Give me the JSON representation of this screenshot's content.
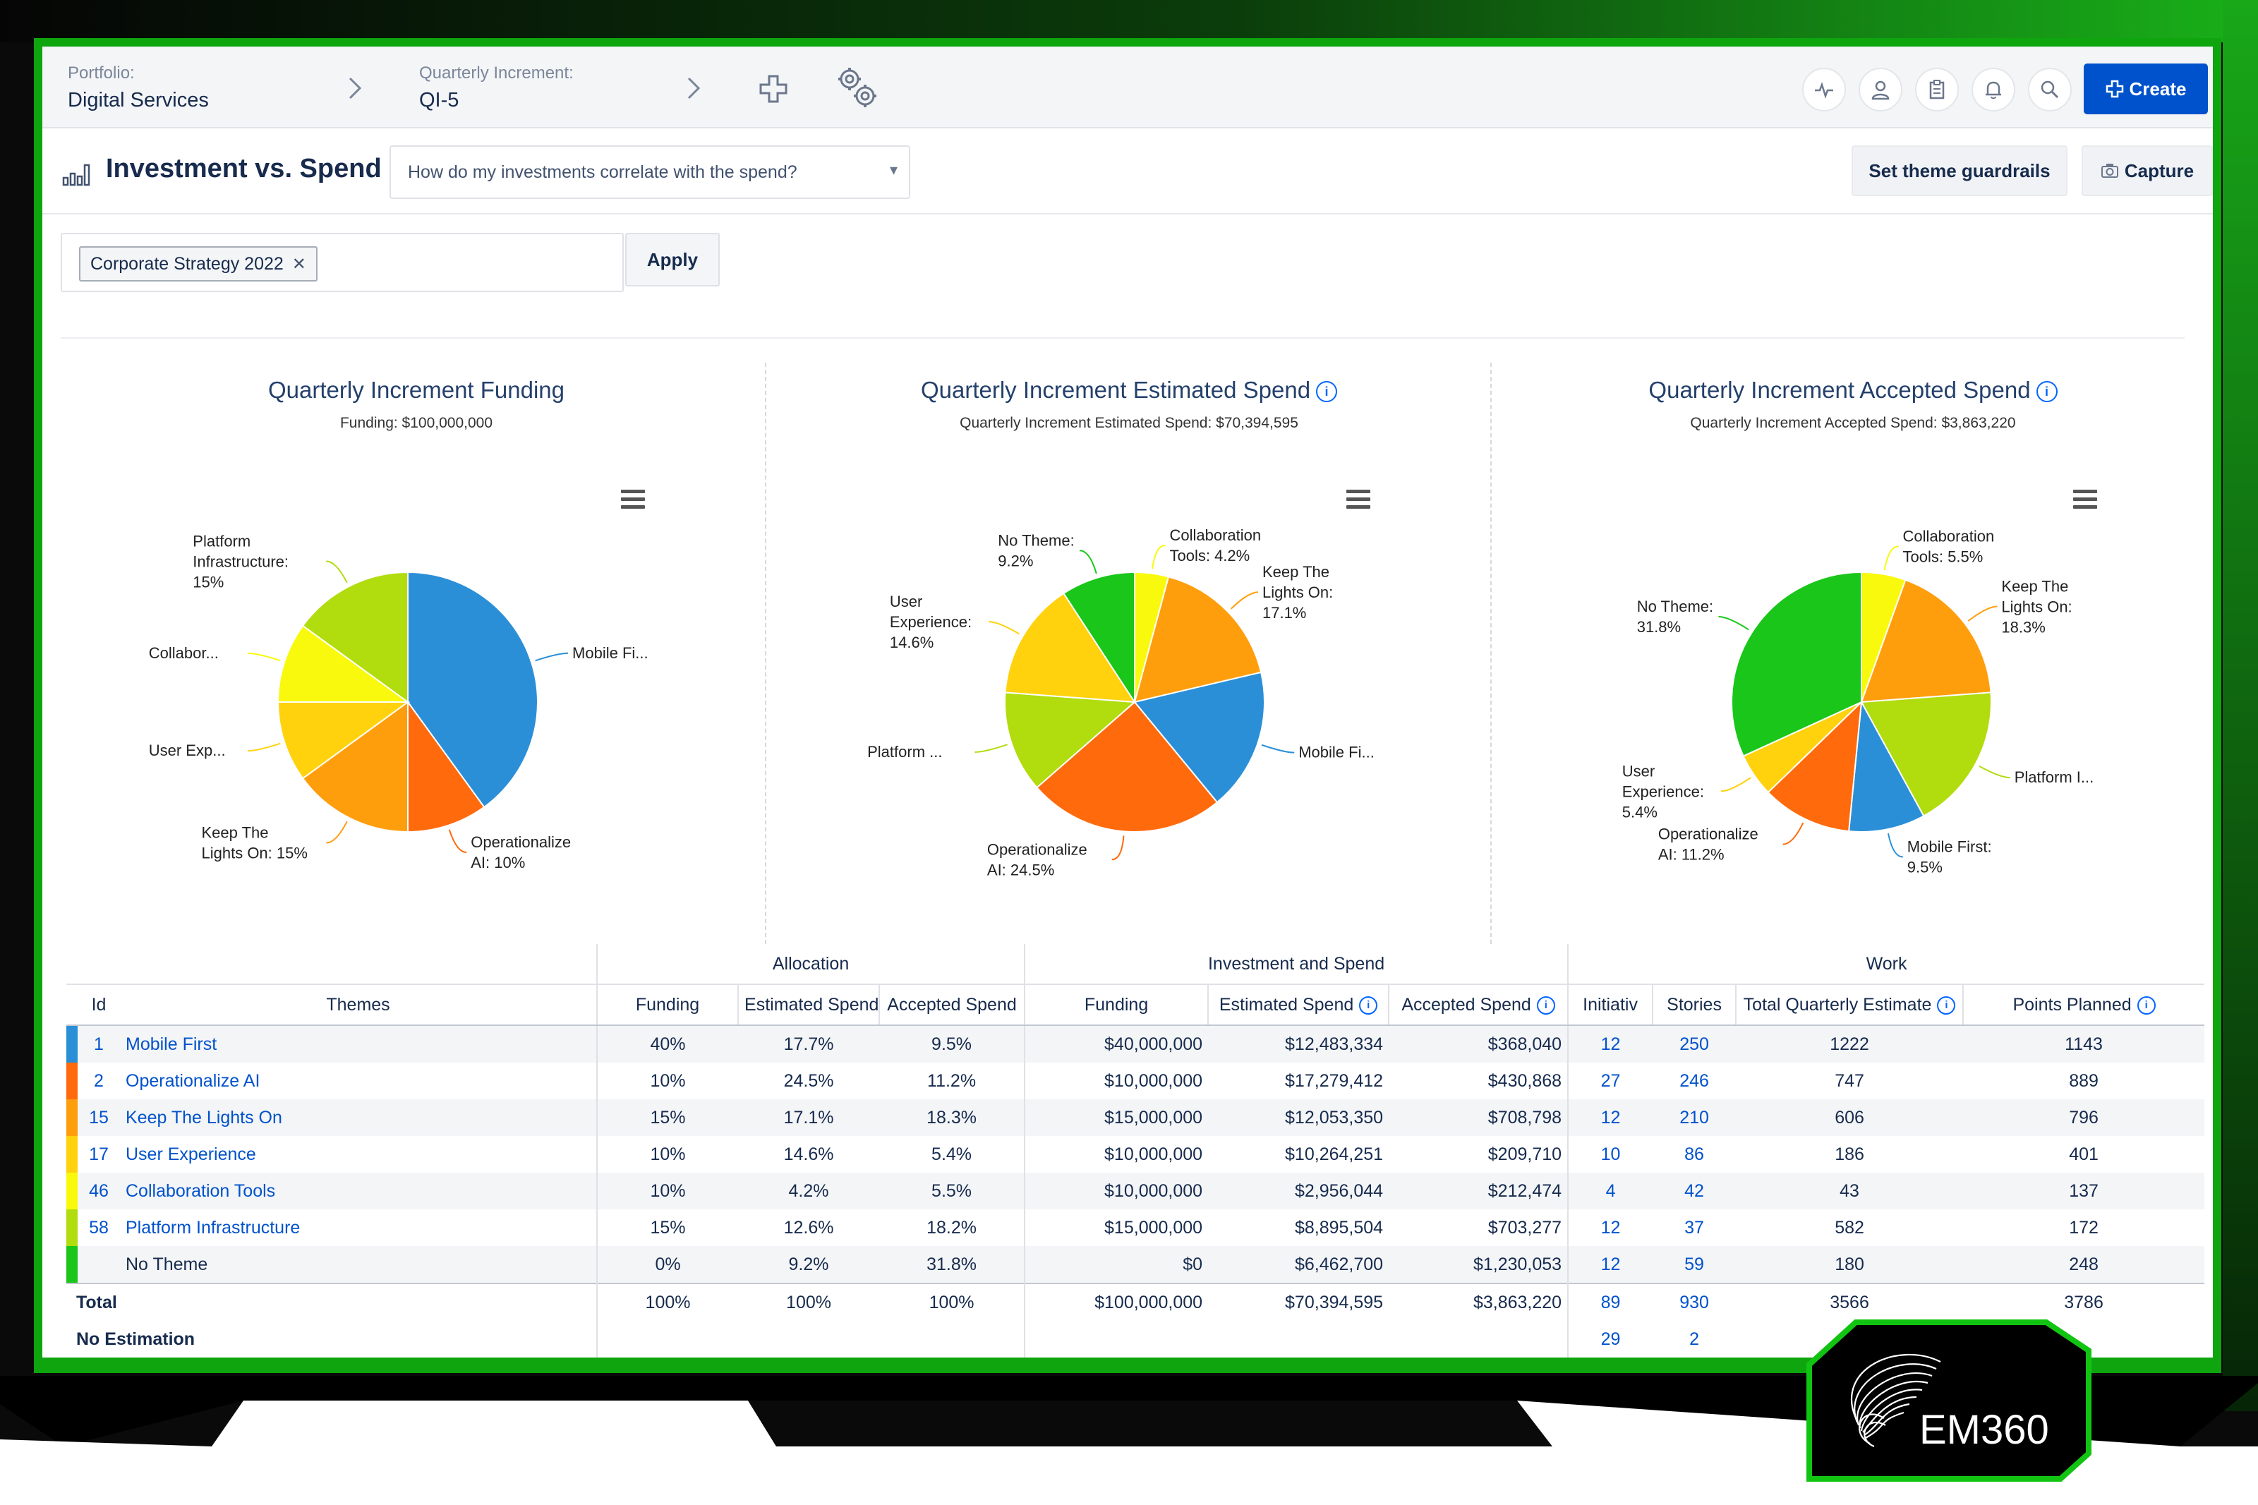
{
  "topbar": {
    "portfolio_label": "Portfolio:",
    "portfolio_value": "Digital Services",
    "qi_label": "Quarterly Increment:",
    "qi_value": "QI-5",
    "create_label": "Create"
  },
  "header": {
    "title": "Investment vs. Spend",
    "question": "How do my investments correlate with the spend?",
    "guardrails_label": "Set theme guardrails",
    "capture_label": "Capture"
  },
  "filter": {
    "tag": "Corporate Strategy 2022",
    "apply_label": "Apply"
  },
  "chart_data": [
    {
      "type": "pie",
      "title": "Quarterly Increment Funding",
      "subtitle": "Funding: $100,000,000",
      "slices": [
        {
          "label": "Mobile Fi...",
          "value": 40,
          "color": "#2b8fd8"
        },
        {
          "label": "Operationalize AI: 10%",
          "value": 10,
          "color": "#ff6a0d"
        },
        {
          "label": "Keep The Lights On: 15%",
          "value": 15,
          "color": "#ff9e0d"
        },
        {
          "label": "User Exp...",
          "value": 10,
          "color": "#ffd20d"
        },
        {
          "label": "Collabor...",
          "value": 10,
          "color": "#f9f90e"
        },
        {
          "label": "Platform Infrastructure: 15%",
          "value": 15,
          "color": "#b1dc0e"
        }
      ]
    },
    {
      "type": "pie",
      "title": "Quarterly Increment Estimated Spend",
      "subtitle": "Quarterly Increment Estimated Spend: $70,394,595",
      "slices": [
        {
          "label": "Collaboration Tools: 4.2%",
          "value": 4.2,
          "color": "#f9f90e"
        },
        {
          "label": "Keep The Lights On: 17.1%",
          "value": 17.1,
          "color": "#ff9e0d"
        },
        {
          "label": "Mobile Fi...",
          "value": 17.7,
          "color": "#2b8fd8"
        },
        {
          "label": "Operationalize AI: 24.5%",
          "value": 24.5,
          "color": "#ff6a0d"
        },
        {
          "label": "Platform ...",
          "value": 12.6,
          "color": "#b1dc0e"
        },
        {
          "label": "User Experience: 14.6%",
          "value": 14.6,
          "color": "#ffd20d"
        },
        {
          "label": "No Theme: 9.2%",
          "value": 9.2,
          "color": "#19c619"
        }
      ]
    },
    {
      "type": "pie",
      "title": "Quarterly Increment Accepted Spend",
      "subtitle": "Quarterly Increment Accepted Spend: $3,863,220",
      "slices": [
        {
          "label": "Collaboration Tools: 5.5%",
          "value": 5.5,
          "color": "#f9f90e"
        },
        {
          "label": "Keep The Lights On: 18.3%",
          "value": 18.3,
          "color": "#ff9e0d"
        },
        {
          "label": "Platform I...",
          "value": 18.2,
          "color": "#b1dc0e"
        },
        {
          "label": "Mobile First: 9.5%",
          "value": 9.5,
          "color": "#2b8fd8"
        },
        {
          "label": "Operationalize AI: 11.2%",
          "value": 11.2,
          "color": "#ff6a0d"
        },
        {
          "label": "User Experience: 5.4%",
          "value": 5.4,
          "color": "#ffd20d"
        },
        {
          "label": "No Theme: 31.8%",
          "value": 31.8,
          "color": "#19c619"
        }
      ]
    }
  ],
  "table": {
    "groups": [
      "Allocation",
      "Investment and Spend",
      "Work"
    ],
    "headers": [
      "Id",
      "Themes",
      "Funding",
      "Estimated Spend",
      "Accepted Spend",
      "Funding",
      "Estimated Spend",
      "Accepted Spend",
      "Initiativ",
      "Stories",
      "Total Quarterly Estimate",
      "Points Planned"
    ],
    "rows": [
      {
        "color": "#2b8fd8",
        "id": "1",
        "theme": "Mobile First",
        "a_fund": "40%",
        "a_est": "17.7%",
        "a_acc": "9.5%",
        "i_fund": "$40,000,000",
        "i_est": "$12,483,334",
        "i_acc": "$368,040",
        "init": "12",
        "stories": "250",
        "tqe": "1222",
        "pts": "1143"
      },
      {
        "color": "#ff6a0d",
        "id": "2",
        "theme": "Operationalize AI",
        "a_fund": "10%",
        "a_est": "24.5%",
        "a_acc": "11.2%",
        "i_fund": "$10,000,000",
        "i_est": "$17,279,412",
        "i_acc": "$430,868",
        "init": "27",
        "stories": "246",
        "tqe": "747",
        "pts": "889"
      },
      {
        "color": "#ff9e0d",
        "id": "15",
        "theme": "Keep The Lights On",
        "a_fund": "15%",
        "a_est": "17.1%",
        "a_acc": "18.3%",
        "i_fund": "$15,000,000",
        "i_est": "$12,053,350",
        "i_acc": "$708,798",
        "init": "12",
        "stories": "210",
        "tqe": "606",
        "pts": "796"
      },
      {
        "color": "#ffd20d",
        "id": "17",
        "theme": "User Experience",
        "a_fund": "10%",
        "a_est": "14.6%",
        "a_acc": "5.4%",
        "i_fund": "$10,000,000",
        "i_est": "$10,264,251",
        "i_acc": "$209,710",
        "init": "10",
        "stories": "86",
        "tqe": "186",
        "pts": "401"
      },
      {
        "color": "#f9f90e",
        "id": "46",
        "theme": "Collaboration Tools",
        "a_fund": "10%",
        "a_est": "4.2%",
        "a_acc": "5.5%",
        "i_fund": "$10,000,000",
        "i_est": "$2,956,044",
        "i_acc": "$212,474",
        "init": "4",
        "stories": "42",
        "tqe": "43",
        "pts": "137"
      },
      {
        "color": "#b1dc0e",
        "id": "58",
        "theme": "Platform Infrastructure",
        "a_fund": "15%",
        "a_est": "12.6%",
        "a_acc": "18.2%",
        "i_fund": "$15,000,000",
        "i_est": "$8,895,504",
        "i_acc": "$703,277",
        "init": "12",
        "stories": "37",
        "tqe": "582",
        "pts": "172"
      },
      {
        "color": "#19c619",
        "id": "",
        "theme": "No Theme",
        "a_fund": "0%",
        "a_est": "9.2%",
        "a_acc": "31.8%",
        "i_fund": "$0",
        "i_est": "$6,462,700",
        "i_acc": "$1,230,053",
        "init": "12",
        "stories": "59",
        "tqe": "180",
        "pts": "248"
      }
    ],
    "total": {
      "label": "Total",
      "a_fund": "100%",
      "a_est": "100%",
      "a_acc": "100%",
      "i_fund": "$100,000,000",
      "i_est": "$70,394,595",
      "i_acc": "$3,863,220",
      "init": "89",
      "stories": "930",
      "tqe": "3566",
      "pts": "3786"
    },
    "no_estimation": {
      "label": "No Estimation",
      "init": "29",
      "stories": "2"
    }
  },
  "logo": {
    "text": "EM360"
  }
}
